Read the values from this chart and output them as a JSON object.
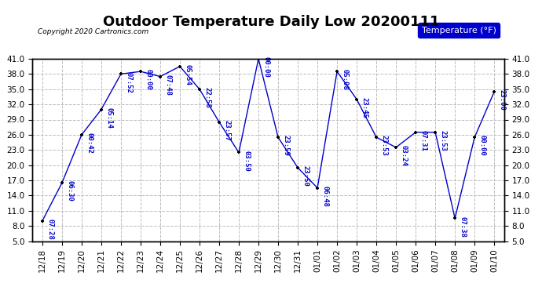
{
  "title": "Outdoor Temperature Daily Low 20200111",
  "copyright": "Copyright 2020 Cartronics.com",
  "legend_label": "Temperature (°F)",
  "x_labels": [
    "12/18",
    "12/19",
    "12/20",
    "12/21",
    "12/22",
    "12/23",
    "12/24",
    "12/25",
    "12/26",
    "12/27",
    "12/28",
    "12/29",
    "12/30",
    "12/31",
    "01/01",
    "01/02",
    "01/03",
    "01/04",
    "01/05",
    "01/06",
    "01/07",
    "01/08",
    "01/09",
    "01/10"
  ],
  "y_values": [
    9.0,
    16.5,
    26.0,
    31.0,
    38.0,
    38.5,
    37.5,
    39.5,
    35.0,
    28.5,
    22.5,
    41.0,
    25.5,
    19.5,
    15.5,
    38.5,
    33.0,
    25.5,
    23.5,
    26.5,
    26.5,
    9.5,
    25.5,
    34.5
  ],
  "point_labels": [
    "07:28",
    "06:30",
    "00:42",
    "05:14",
    "07:52",
    "00:00",
    "07:48",
    "05:54",
    "22:58",
    "23:57",
    "03:50",
    "00:00",
    "23:59",
    "23:50",
    "06:48",
    "05:08",
    "23:45",
    "23:53",
    "03:24",
    "07:31",
    "23:53",
    "07:38",
    "00:00",
    "23:00"
  ],
  "line_color": "#0000cc",
  "marker_color": "black",
  "grid_color": "#bbbbbb",
  "bg_color": "#ffffff",
  "plot_bg_color": "#ffffff",
  "ylim": [
    5.0,
    41.0
  ],
  "yticks": [
    5.0,
    8.0,
    11.0,
    14.0,
    17.0,
    20.0,
    23.0,
    26.0,
    29.0,
    32.0,
    35.0,
    38.0,
    41.0
  ],
  "title_fontsize": 13,
  "label_fontsize": 6.5,
  "tick_fontsize": 7.5,
  "legend_fontsize": 8
}
